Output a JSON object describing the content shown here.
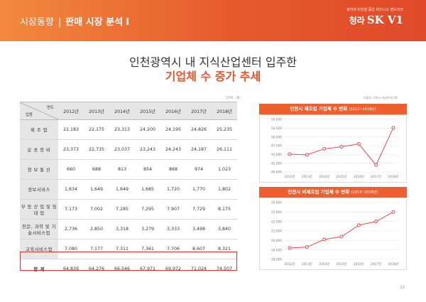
{
  "header": {
    "section": "시장동향",
    "divider": "|",
    "subsection": "판매 시장 분석",
    "roman": "Ⅰ",
    "tagline": "청라의 비전을 품은 비즈니스 랜드마크",
    "brand_prefix": "청라",
    "brand_name": "SK V1"
  },
  "title": {
    "line1": "인천광역시 내 지식산업센터 입주한",
    "line2": "기업체 수 증가 추세"
  },
  "unit_label": "[단위 : 개]",
  "source_label": "※출처: 인천시 지방자치단체",
  "table": {
    "corner_year": "연도",
    "corner_industry": "업종",
    "years": [
      "2012년",
      "2013년",
      "2014년",
      "2015년",
      "2016년",
      "2017년",
      "2018년"
    ],
    "rows": [
      {
        "label": "제 조 업",
        "values": [
          "22,183",
          "22,175",
          "23,313",
          "24,200",
          "24,195",
          "24,826",
          "25,235"
        ]
      },
      {
        "label": "운 송 장 비",
        "values": [
          "23,373",
          "22,735",
          "23,037",
          "23,243",
          "24,243",
          "24,187",
          "26,111"
        ]
      },
      {
        "label": "정 보 통 신",
        "values": [
          "660",
          "688",
          "813",
          "854",
          "868",
          "974",
          "1,023"
        ]
      },
      {
        "label": "정보서비스",
        "values": [
          "1,634",
          "1,649",
          "1,649",
          "1,685",
          "1,720",
          "1,770",
          "1,802"
        ]
      },
      {
        "label": "부 동 산 업 및 임 대 업",
        "values": [
          "7,173",
          "7,002",
          "7,285",
          "7,295",
          "7,907",
          "7,729",
          "8,175"
        ]
      },
      {
        "label": "전문, 과학 및 기술서비스업",
        "values": [
          "2,736",
          "2,850",
          "3,318",
          "3,279",
          "3,333",
          "3,498",
          "3,840"
        ]
      },
      {
        "label": "교육서비스업",
        "values": [
          "7,080",
          "7,177",
          "7,311",
          "7,361",
          "7,706",
          "8,607",
          "8,321"
        ]
      },
      {
        "label": "합 계",
        "values": [
          "64,839",
          "64,276",
          "66,546",
          "67,971",
          "69,972",
          "71,024",
          "74,507"
        ]
      }
    ]
  },
  "chart_data": [
    {
      "type": "line",
      "title": "인천시 제조업 기업체 수 변화",
      "period": "(2013~2018년)",
      "x": [
        "2012년",
        "2013년",
        "2014년",
        "2015년",
        "2016년",
        "2017년",
        "2018년"
      ],
      "values": [
        45100,
        44900,
        46600,
        47200,
        48000,
        42000,
        52600
      ],
      "y_ticks": [
        40000,
        42500,
        45000,
        47500,
        50000,
        52500,
        55000
      ],
      "y_tick_labels": [
        "40,000",
        "42,500",
        "45,000",
        "47,500",
        "50,000",
        "52,500",
        "55,000"
      ],
      "ylim": [
        40000,
        55000
      ],
      "color": "#e04a4a"
    },
    {
      "type": "line",
      "title": "인천시 비제조업 기업체 수 변화",
      "period": "(2013~2018년)",
      "x": [
        "2012년",
        "2013년",
        "2014년",
        "2015년",
        "2016년",
        "2017년",
        "2018년"
      ],
      "values": [
        19200,
        19300,
        20100,
        20400,
        21600,
        22000,
        23000
      ],
      "y_ticks": [
        18000,
        19000,
        20000,
        21000,
        22000,
        23000,
        24000
      ],
      "y_tick_labels": [
        "18,000",
        "19,000",
        "20,000",
        "21,000",
        "22,000",
        "23,000",
        "24,000"
      ],
      "ylim": [
        18000,
        24000
      ],
      "color": "#e04a4a"
    }
  ],
  "page_number": "13"
}
